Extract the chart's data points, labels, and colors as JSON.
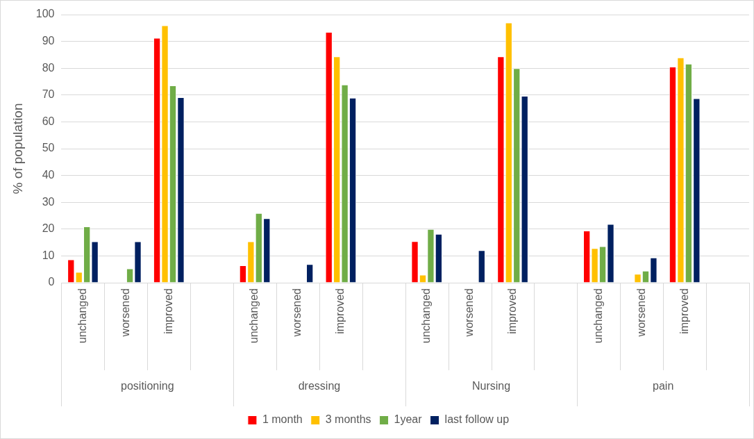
{
  "chart_data": {
    "type": "bar",
    "ylabel": "% of population",
    "categories": [
      "unchanged",
      "worsened",
      "improved",
      null,
      "unchanged",
      "worsened",
      "improved",
      null,
      "unchanged",
      "worsened",
      "improved",
      null,
      "unchanged",
      "worsened",
      "improved"
    ],
    "annotations": [
      "positioning",
      "dressing",
      "Nursing",
      "pain"
    ],
    "series": [
      {
        "name": "1 month",
        "color": "#ff0000",
        "values": [
          8.7,
          0,
          91.3,
          null,
          6.5,
          0,
          93.5,
          null,
          15.5,
          0,
          84.4,
          null,
          19.4,
          0,
          80.6
        ]
      },
      {
        "name": "3 months",
        "color": "#ffc000",
        "values": [
          4,
          0,
          96,
          null,
          15.4,
          0,
          84.4,
          null,
          3,
          0,
          97,
          null,
          12.9,
          3.3,
          84
        ]
      },
      {
        "name": "1year",
        "color": "#70ad47",
        "values": [
          21,
          5.3,
          73.6,
          null,
          26,
          0,
          73.9,
          null,
          20,
          0,
          80,
          null,
          13.6,
          4.5,
          81.7
        ]
      },
      {
        "name": "last follow up",
        "color": "#002060",
        "values": [
          15.4,
          15.4,
          69.2,
          null,
          24,
          6.9,
          69,
          null,
          18.2,
          12.1,
          69.7,
          null,
          21.9,
          9.4,
          68.8
        ]
      }
    ],
    "ylim": [
      0,
      100
    ],
    "yticks": [
      0,
      10,
      20,
      30,
      40,
      50,
      60,
      70,
      80,
      90,
      100
    ],
    "grid": "y",
    "legend": "bottom"
  }
}
